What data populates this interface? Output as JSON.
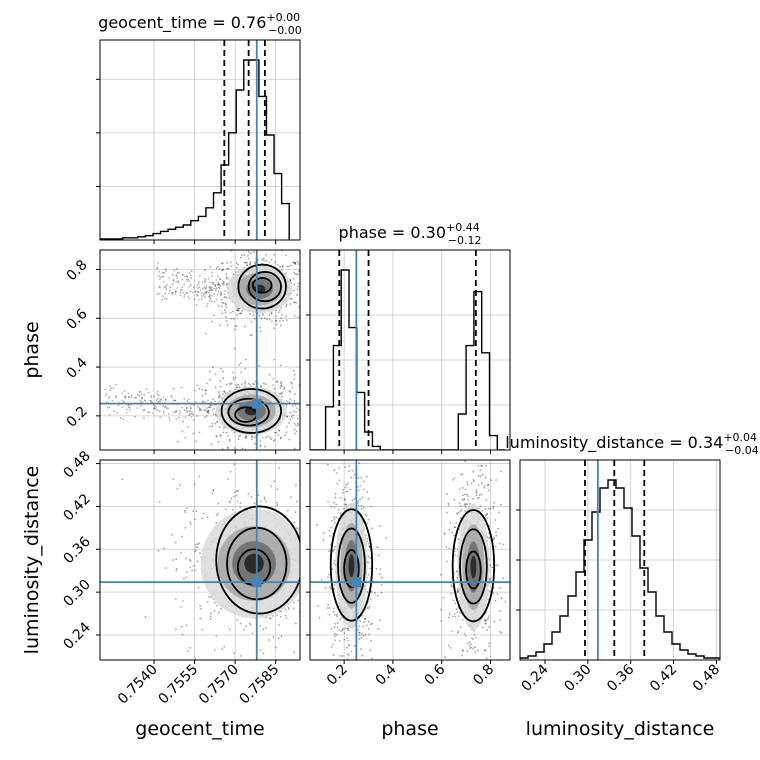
{
  "chart_data": {
    "type": "corner",
    "parameters": [
      "geocent_time",
      "phase",
      "luminosity_distance"
    ],
    "truths": [
      0.7578,
      0.25,
      0.314
    ],
    "truth_color": "#4682b4",
    "ranges": [
      [
        0.752,
        0.7594
      ],
      [
        0.06,
        0.88
      ],
      [
        0.205,
        0.485
      ]
    ],
    "axes": {
      "geocent_time": {
        "label": "geocent_time",
        "ticks": [
          0.754,
          0.7555,
          0.757,
          0.7585
        ],
        "tick_labels": [
          "0.7540",
          "0.7555",
          "0.7570",
          "0.7585"
        ]
      },
      "phase": {
        "label": "phase",
        "ticks": [
          0.2,
          0.4,
          0.6,
          0.8
        ],
        "tick_labels": [
          "0.2",
          "0.4",
          "0.6",
          "0.8"
        ]
      },
      "luminosity_distance": {
        "label": "luminosity_distance",
        "ticks": [
          0.24,
          0.3,
          0.36,
          0.42,
          0.48
        ],
        "tick_labels": [
          "0.24",
          "0.30",
          "0.36",
          "0.42",
          "0.48"
        ]
      }
    },
    "marginals": [
      {
        "parameter": "geocent_time",
        "title": {
          "main": "geocent_time = 0.76",
          "plus": "+0.00",
          "minus": "−0.00"
        },
        "quantiles": [
          0.7566,
          0.7575,
          0.7581
        ],
        "bin_edges": [
          0.752,
          0.75228,
          0.75256,
          0.75284,
          0.75312,
          0.7534,
          0.75368,
          0.75396,
          0.75424,
          0.75452,
          0.7548,
          0.75508,
          0.75536,
          0.75564,
          0.75592,
          0.7562,
          0.75648,
          0.75676,
          0.75704,
          0.75732,
          0.7576,
          0.75788,
          0.75816,
          0.75844,
          0.75872,
          0.759
        ],
        "counts": [
          1,
          1,
          1,
          2,
          2,
          3,
          4,
          6,
          8,
          10,
          12,
          14,
          18,
          22,
          30,
          44,
          70,
          100,
          140,
          168,
          168,
          134,
          98,
          62,
          34
        ],
        "yticks": [
          50,
          100,
          150
        ]
      },
      {
        "parameter": "phase",
        "title": {
          "main": "phase = 0.30",
          "plus": "+0.44",
          "minus": "−0.12"
        },
        "quantiles": [
          0.18,
          0.3,
          0.74
        ],
        "bin_edges": [
          0.06,
          0.092,
          0.124,
          0.156,
          0.188,
          0.22,
          0.252,
          0.284,
          0.316,
          0.348,
          0.38,
          0.412,
          0.444,
          0.476,
          0.508,
          0.54,
          0.572,
          0.604,
          0.636,
          0.668,
          0.7,
          0.732,
          0.764,
          0.796,
          0.828,
          0.86
        ],
        "counts": [
          0,
          0,
          24,
          58,
          100,
          68,
          32,
          10,
          2,
          0,
          0,
          0,
          0,
          0,
          0,
          0,
          0,
          0,
          0,
          20,
          58,
          88,
          54,
          8,
          0
        ],
        "yticks": [
          25,
          50,
          75
        ]
      },
      {
        "parameter": "luminosity_distance",
        "title": {
          "main": "luminosity_distance = 0.34",
          "plus": "+0.04",
          "minus": "−0.04"
        },
        "quantiles": [
          0.296,
          0.337,
          0.379
        ],
        "bin_edges": [
          0.205,
          0.2162,
          0.2274,
          0.2386,
          0.2498,
          0.261,
          0.2722,
          0.2834,
          0.2946,
          0.3058,
          0.317,
          0.3282,
          0.3394,
          0.3506,
          0.3618,
          0.373,
          0.3842,
          0.3954,
          0.4066,
          0.4178,
          0.429,
          0.4402,
          0.4514,
          0.4626,
          0.4738,
          0.485
        ],
        "counts": [
          1,
          2,
          4,
          8,
          14,
          22,
          32,
          44,
          60,
          74,
          86,
          90,
          86,
          76,
          62,
          46,
          34,
          22,
          14,
          8,
          5,
          3,
          2,
          1,
          1
        ],
        "yticks": [
          25,
          50,
          75
        ]
      }
    ],
    "joint": [
      {
        "x": "geocent_time",
        "y": "phase",
        "blobs": [
          {
            "cx": 0.7579,
            "cy": 0.72,
            "sx": 0.00055,
            "sy": 0.045,
            "tail_x": 0.7541,
            "tail_y": 0.82,
            "tail_y_end": 0.6
          },
          {
            "cx": 0.7576,
            "cy": 0.22,
            "sx": 0.0006,
            "sy": 0.045,
            "tail_x": 0.7522,
            "tail_y": 0.34,
            "tail_y_end": 0.12
          }
        ],
        "contours": [
          {
            "level": "outer",
            "curves": [
              {
                "cx": 0.758,
                "cy": 0.73,
                "rx": 0.00088,
                "ry": 0.09
              },
              {
                "cx": 0.7576,
                "cy": 0.22,
                "rx": 0.0011,
                "ry": 0.09
              }
            ]
          },
          {
            "level": "middle",
            "curves": [
              {
                "cx": 0.7581,
                "cy": 0.73,
                "rx": 0.0006,
                "ry": 0.06
              },
              {
                "cx": 0.7575,
                "cy": 0.215,
                "rx": 0.00075,
                "ry": 0.055
              }
            ]
          },
          {
            "level": "inner",
            "curves": [
              {
                "cx": 0.758,
                "cy": 0.735,
                "rx": 0.00035,
                "ry": 0.03
              },
              {
                "cx": 0.7574,
                "cy": 0.205,
                "rx": 0.0004,
                "ry": 0.03
              }
            ]
          }
        ]
      },
      {
        "x": "geocent_time",
        "y": "luminosity_distance",
        "blobs": [
          {
            "cx": 0.7577,
            "cy": 0.34,
            "sx": 0.0009,
            "sy": 0.035
          }
        ],
        "contours": [
          {
            "level": "outer",
            "curves": [
              {
                "cx": 0.7579,
                "cy": 0.345,
                "rx": 0.0016,
                "ry": 0.075
              }
            ]
          },
          {
            "level": "middle",
            "curves": [
              {
                "cx": 0.7578,
                "cy": 0.34,
                "rx": 0.0011,
                "ry": 0.05
              }
            ]
          },
          {
            "level": "inner",
            "curves": [
              {
                "cx": 0.7577,
                "cy": 0.335,
                "rx": 0.0006,
                "ry": 0.025
              }
            ]
          }
        ]
      },
      {
        "x": "phase",
        "y": "luminosity_distance",
        "blobs": [
          {
            "cx": 0.23,
            "cy": 0.337,
            "sx": 0.03,
            "sy": 0.04
          },
          {
            "cx": 0.73,
            "cy": 0.335,
            "sx": 0.03,
            "sy": 0.04
          }
        ],
        "contours": [
          {
            "level": "outer",
            "curves": [
              {
                "cx": 0.23,
                "cy": 0.338,
                "rx": 0.085,
                "ry": 0.078
              },
              {
                "cx": 0.73,
                "cy": 0.337,
                "rx": 0.085,
                "ry": 0.078
              }
            ]
          },
          {
            "level": "middle",
            "curves": [
              {
                "cx": 0.23,
                "cy": 0.337,
                "rx": 0.055,
                "ry": 0.052
              },
              {
                "cx": 0.73,
                "cy": 0.336,
                "rx": 0.055,
                "ry": 0.052
              }
            ]
          },
          {
            "level": "inner",
            "curves": [
              {
                "cx": 0.23,
                "cy": 0.333,
                "rx": 0.03,
                "ry": 0.026
              },
              {
                "cx": 0.73,
                "cy": 0.331,
                "rx": 0.03,
                "ry": 0.026
              }
            ]
          }
        ]
      }
    ],
    "grid": true
  }
}
